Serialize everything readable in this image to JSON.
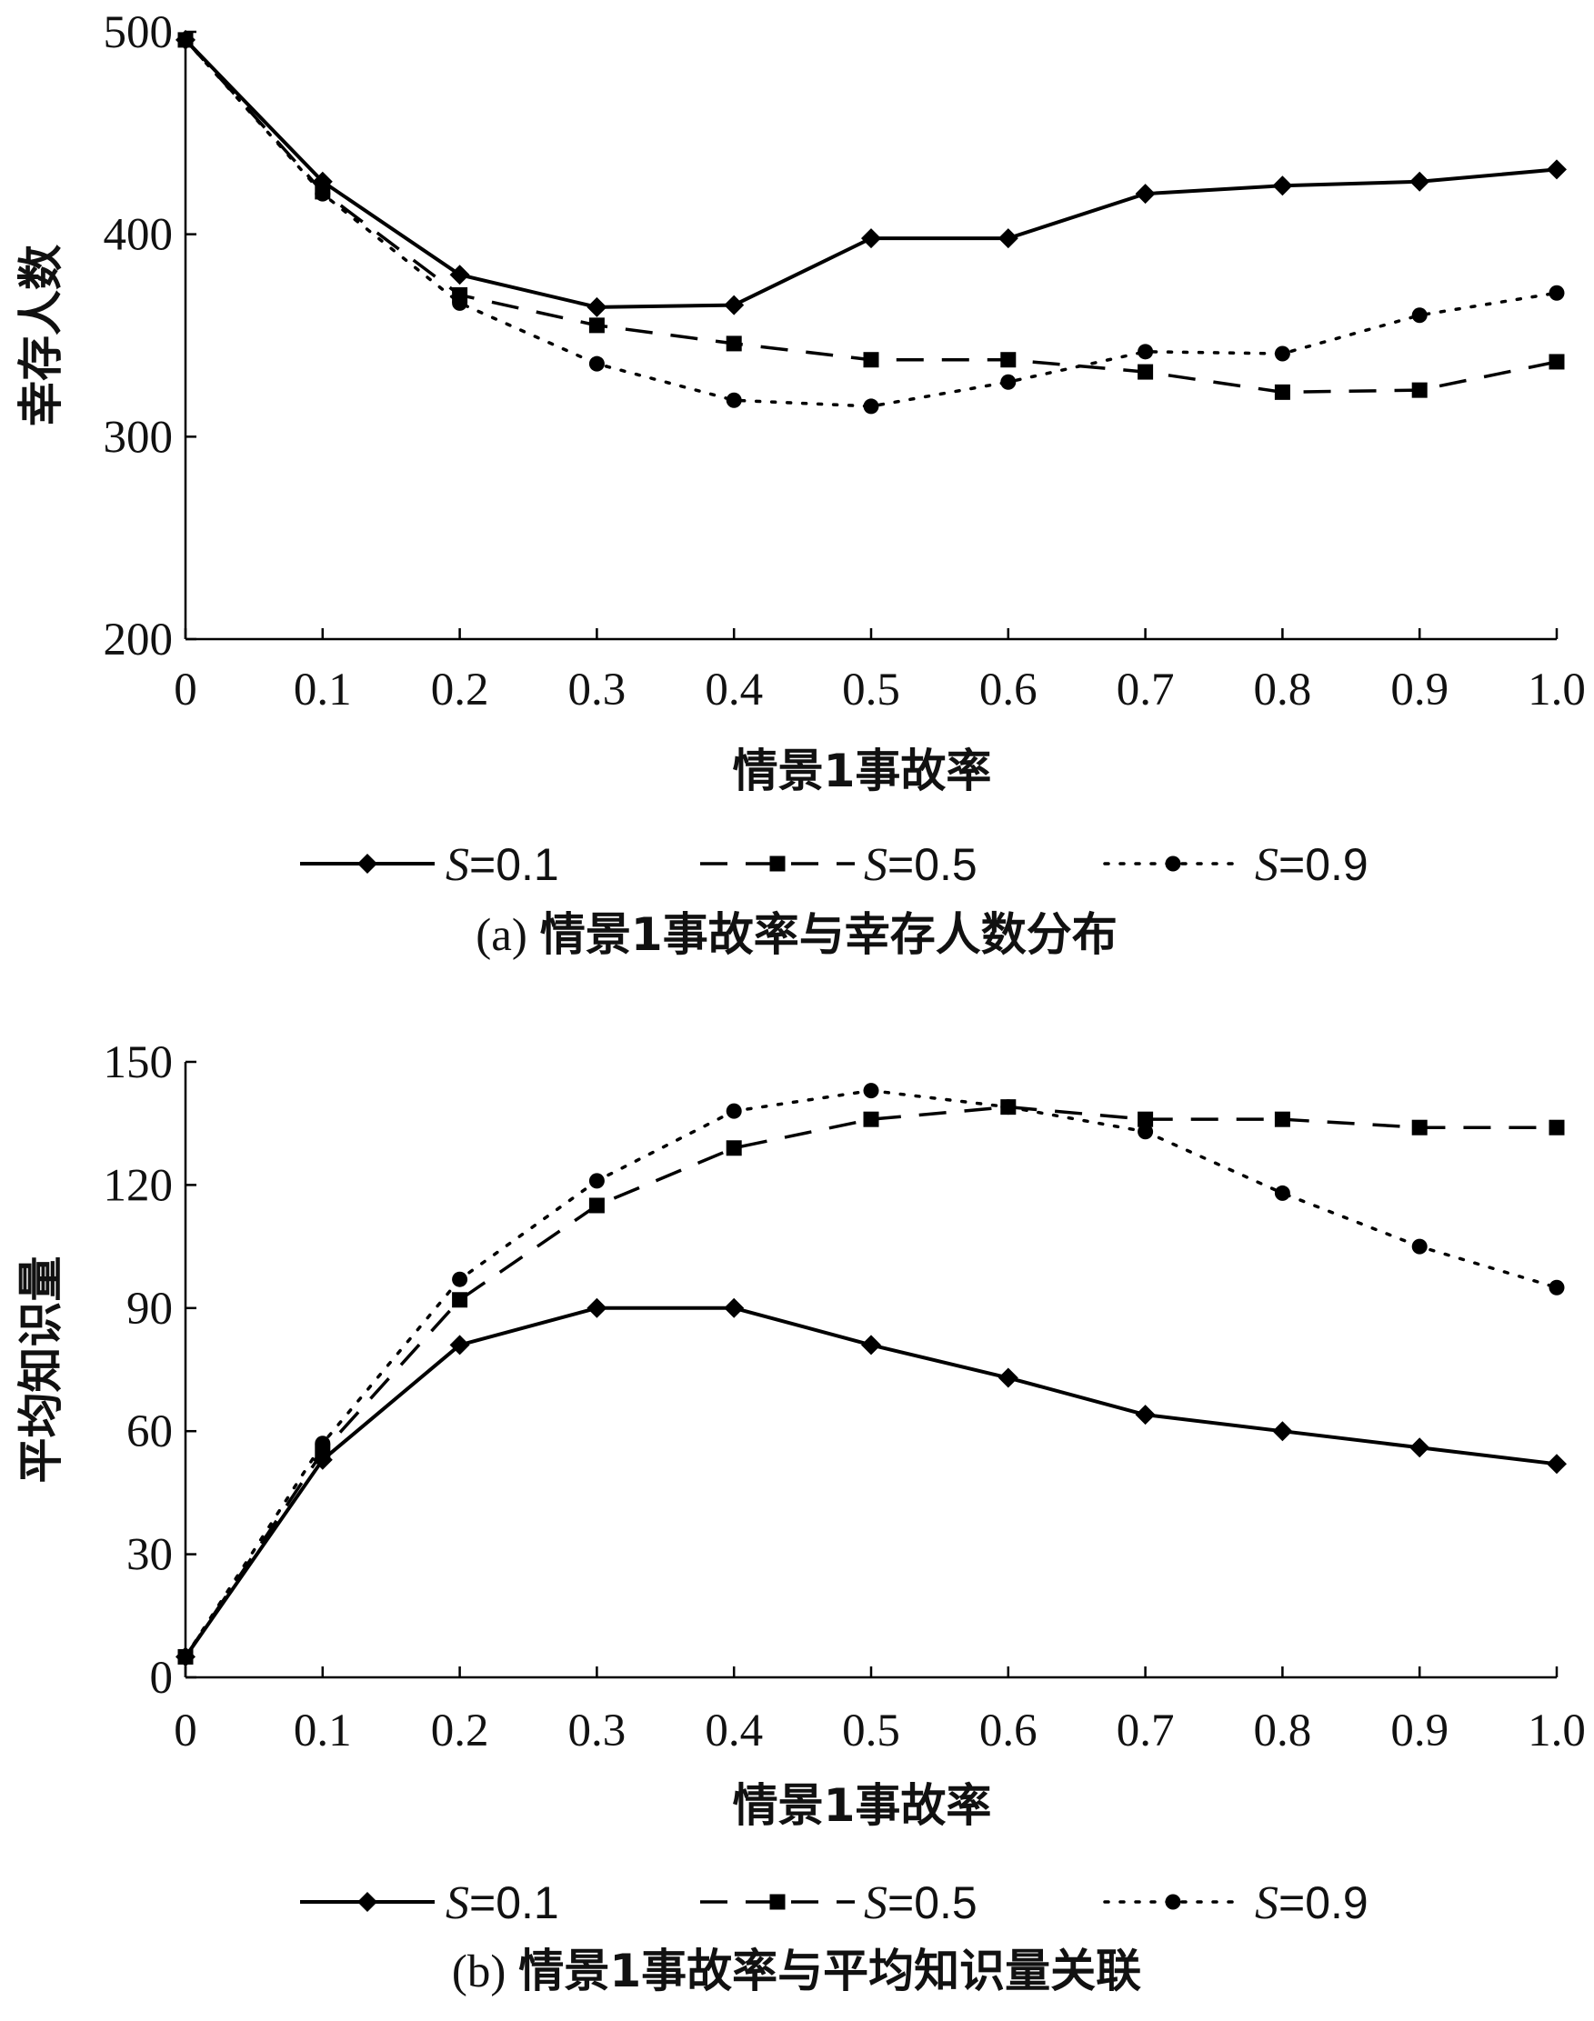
{
  "chart_data": [
    {
      "type": "line",
      "caption_prefix": "(a)",
      "caption_main": "情景1事故率与幸存人数分布",
      "xlabel": "情景1事故率",
      "ylabel": "幸存人数",
      "categories": [
        "0",
        "0.1",
        "0.2",
        "0.3",
        "0.4",
        "0.5",
        "0.6",
        "0.7",
        "0.8",
        "0.9",
        "1.0"
      ],
      "x": [
        0,
        0.1,
        0.2,
        0.3,
        0.4,
        0.5,
        0.6,
        0.7,
        0.8,
        0.9,
        1.0
      ],
      "ylim": [
        200,
        500
      ],
      "yticks": [
        200,
        300,
        400,
        500
      ],
      "legend_position": "below-axis",
      "series": [
        {
          "name": "S=0.1",
          "name_italic": "S",
          "name_rest": "=0.1",
          "style": "solid",
          "marker": "diamond",
          "values": [
            496,
            426,
            380,
            364,
            365,
            398,
            398,
            420,
            424,
            426,
            432
          ]
        },
        {
          "name": "S=0.5",
          "name_italic": "S",
          "name_rest": "=0.5",
          "style": "dashed",
          "marker": "square",
          "values": [
            496,
            421,
            370,
            355,
            346,
            338,
            338,
            332,
            322,
            323,
            337
          ]
        },
        {
          "name": "S=0.9",
          "name_italic": "S",
          "name_rest": "=0.9",
          "style": "dotted",
          "marker": "circle",
          "values": [
            496,
            420,
            366,
            336,
            318,
            315,
            327,
            342,
            341,
            360,
            371
          ]
        }
      ]
    },
    {
      "type": "line",
      "caption_prefix": "(b)",
      "caption_main": "情景1事故率与平均知识量关联",
      "xlabel": "情景1事故率",
      "ylabel": "平均知识量",
      "categories": [
        "0",
        "0.1",
        "0.2",
        "0.3",
        "0.4",
        "0.5",
        "0.6",
        "0.7",
        "0.8",
        "0.9",
        "1.0"
      ],
      "x": [
        0,
        0.1,
        0.2,
        0.3,
        0.4,
        0.5,
        0.6,
        0.7,
        0.8,
        0.9,
        1.0
      ],
      "ylim": [
        0,
        150
      ],
      "yticks": [
        0,
        30,
        60,
        90,
        120,
        150
      ],
      "legend_position": "below-axis",
      "series": [
        {
          "name": "S=0.1",
          "name_italic": "S",
          "name_rest": "=0.1",
          "style": "solid",
          "marker": "diamond",
          "values": [
            5,
            53,
            81,
            90,
            90,
            81,
            73,
            64,
            60,
            56,
            52
          ]
        },
        {
          "name": "S=0.5",
          "name_italic": "S",
          "name_rest": "=0.5",
          "style": "dashed",
          "marker": "square",
          "values": [
            5,
            55,
            92,
            115,
            129,
            136,
            139,
            136,
            136,
            134,
            134
          ]
        },
        {
          "name": "S=0.9",
          "name_italic": "S",
          "name_rest": "=0.9",
          "style": "dotted",
          "marker": "circle",
          "values": [
            5,
            57,
            97,
            121,
            138,
            143,
            139,
            133,
            118,
            105,
            95
          ]
        }
      ]
    }
  ]
}
